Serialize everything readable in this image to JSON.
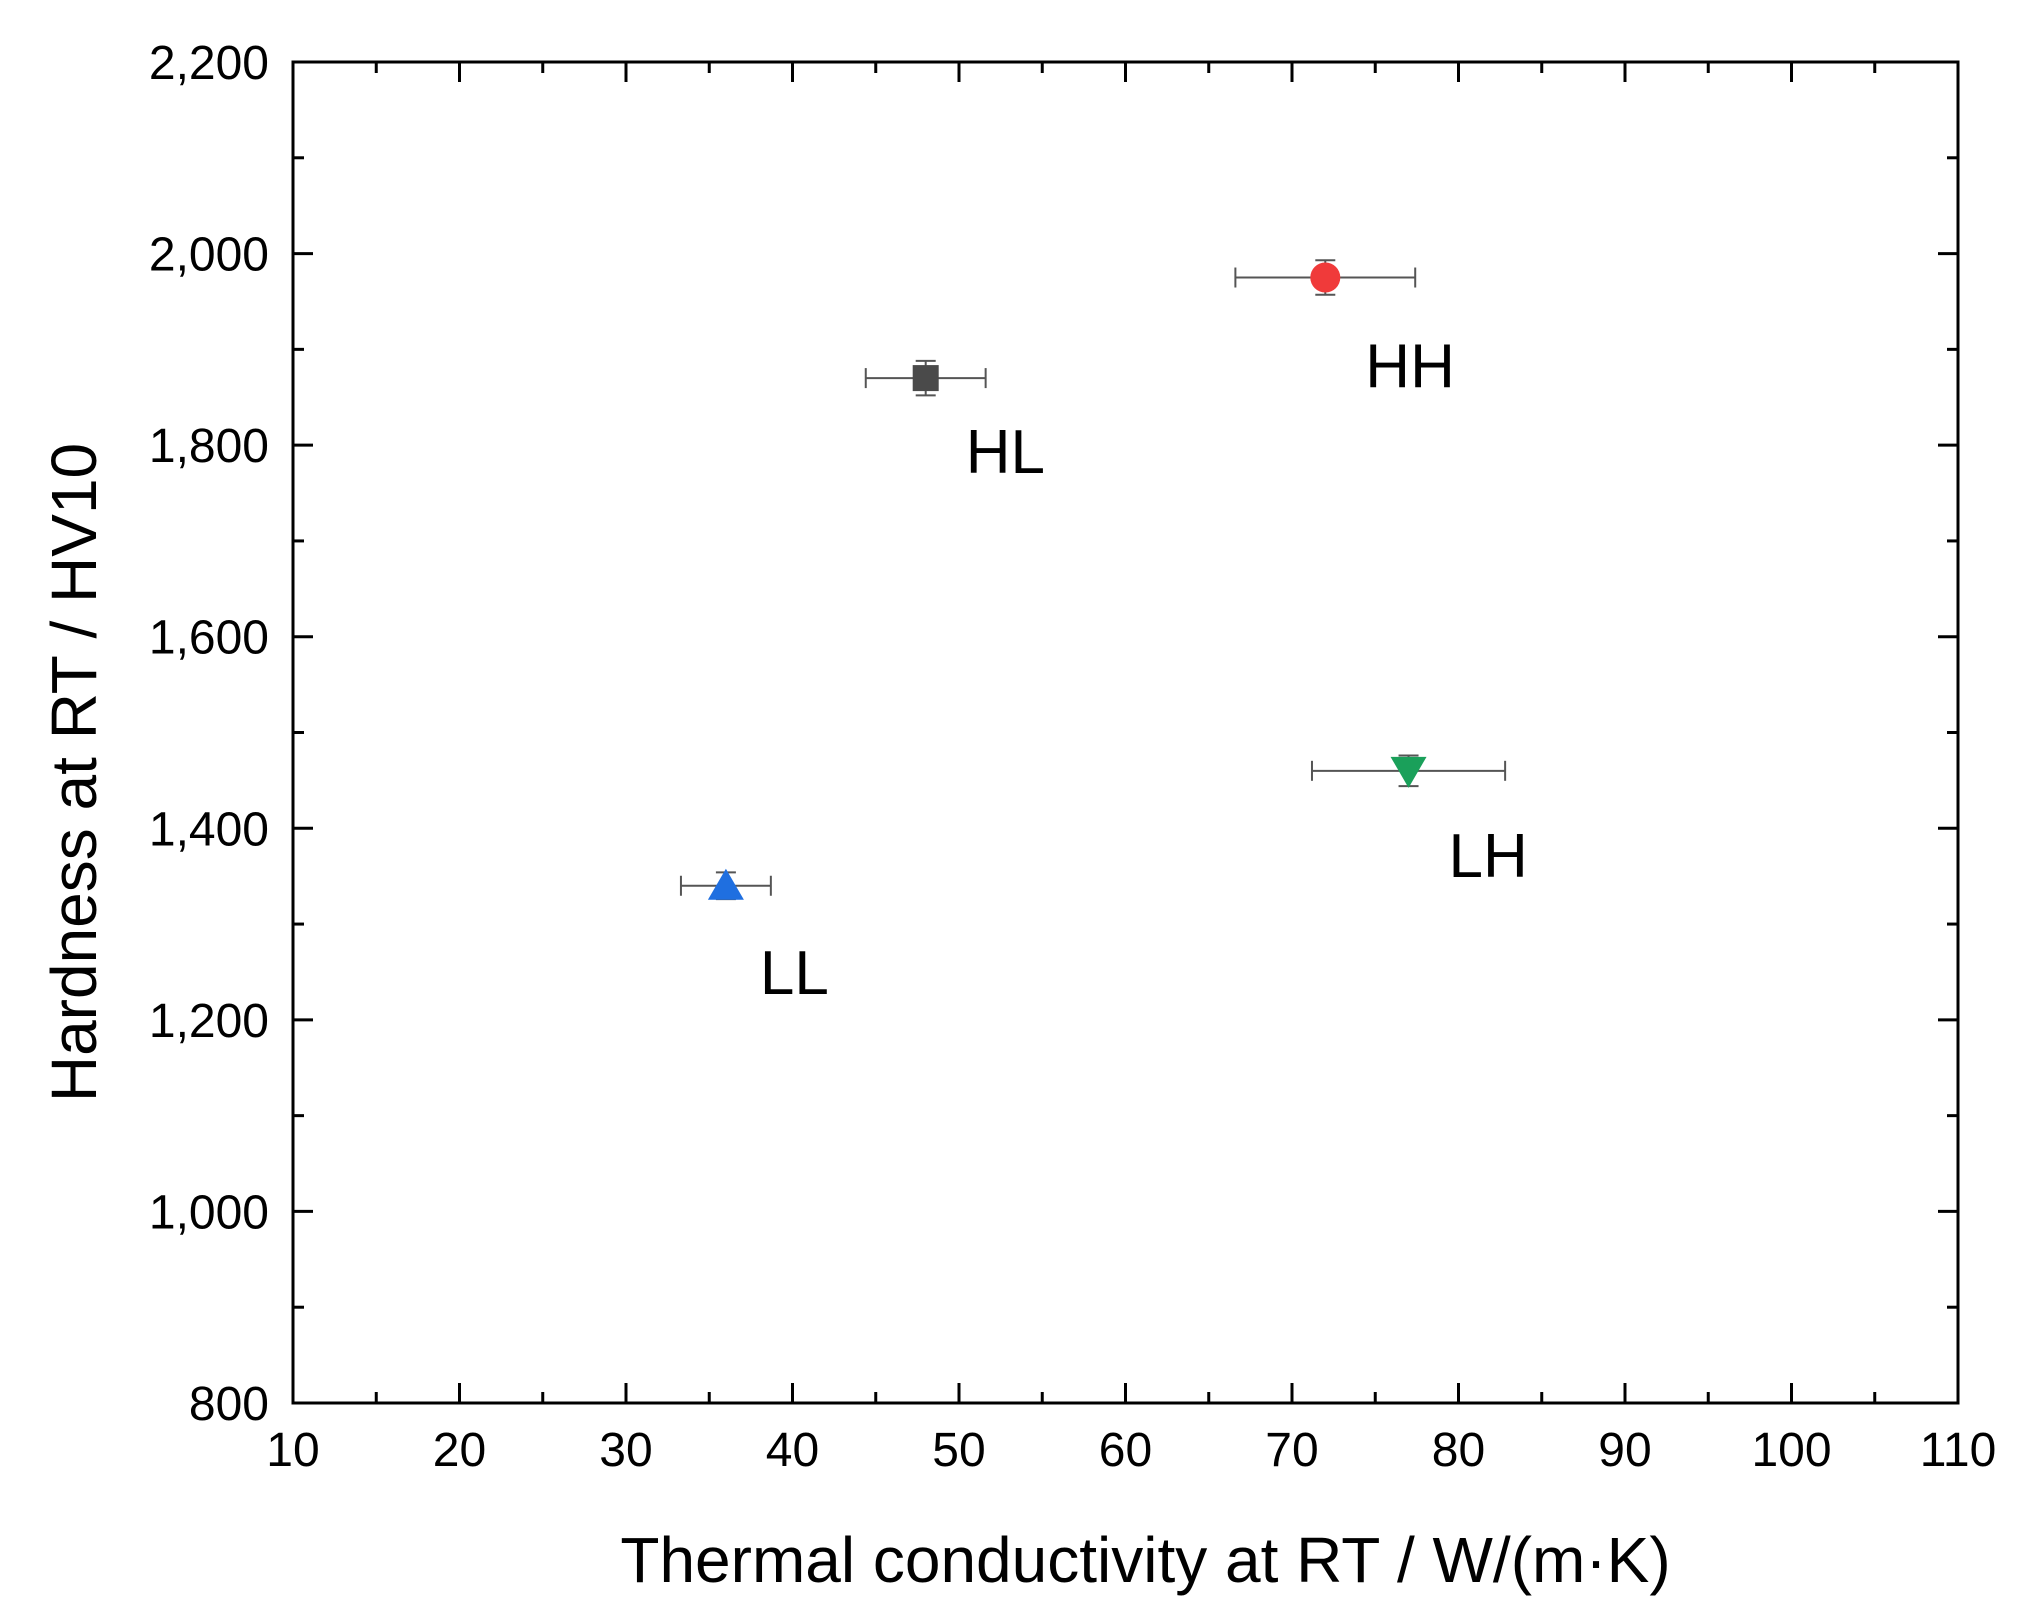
{
  "chart_data": {
    "type": "scatter",
    "title": "",
    "xlabel": "Thermal conductivity at RT / W/(m·K)",
    "ylabel": "Hardness at RT / HV10",
    "xlim": [
      10,
      110
    ],
    "ylim": [
      800,
      2200
    ],
    "x_ticks": [
      10,
      20,
      30,
      40,
      50,
      60,
      70,
      80,
      90,
      100,
      110
    ],
    "x_tick_labels": [
      "10",
      "20",
      "30",
      "40",
      "50",
      "60",
      "70",
      "80",
      "90",
      "100",
      "110"
    ],
    "y_ticks": [
      800,
      1000,
      1200,
      1400,
      1600,
      1800,
      2000,
      2200
    ],
    "y_tick_labels": [
      "800",
      "1,000",
      "1,200",
      "1,400",
      "1,600",
      "1,800",
      "2,000",
      "2,200"
    ],
    "grid": false,
    "points": [
      {
        "label": "HL",
        "x": 48,
        "y": 1870,
        "x_err": 3.6,
        "y_err": 18,
        "marker": "square",
        "color": "#4a4a4a"
      },
      {
        "label": "HH",
        "x": 72,
        "y": 1975,
        "x_err": 5.4,
        "y_err": 18,
        "marker": "circle",
        "color": "#f03a3a"
      },
      {
        "label": "LH",
        "x": 77,
        "y": 1460,
        "x_err": 5.8,
        "y_err": 16,
        "marker": "triangle-down",
        "color": "#1aa05a"
      },
      {
        "label": "LL",
        "x": 36,
        "y": 1340,
        "x_err": 2.7,
        "y_err": 14,
        "marker": "triangle-up",
        "color": "#1f6fe0"
      }
    ]
  }
}
